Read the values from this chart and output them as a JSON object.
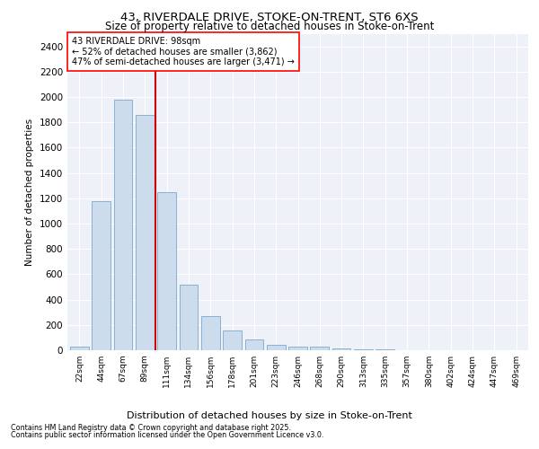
{
  "title_line1": "43, RIVERDALE DRIVE, STOKE-ON-TRENT, ST6 6XS",
  "title_line2": "Size of property relative to detached houses in Stoke-on-Trent",
  "xlabel": "Distribution of detached houses by size in Stoke-on-Trent",
  "ylabel": "Number of detached properties",
  "annotation_line1": "43 RIVERDALE DRIVE: 98sqm",
  "annotation_line2": "← 52% of detached houses are smaller (3,862)",
  "annotation_line3": "47% of semi-detached houses are larger (3,471) →",
  "bar_labels": [
    "22sqm",
    "44sqm",
    "67sqm",
    "89sqm",
    "111sqm",
    "134sqm",
    "156sqm",
    "178sqm",
    "201sqm",
    "223sqm",
    "246sqm",
    "268sqm",
    "290sqm",
    "313sqm",
    "335sqm",
    "357sqm",
    "380sqm",
    "402sqm",
    "424sqm",
    "447sqm",
    "469sqm"
  ],
  "bar_values": [
    25,
    1175,
    1980,
    1860,
    1245,
    515,
    270,
    155,
    85,
    45,
    30,
    28,
    12,
    8,
    5,
    3,
    2,
    1,
    1,
    1,
    1
  ],
  "bar_color": "#ccdcec",
  "bar_edge_color": "#7aa8cc",
  "vline_color": "#cc0000",
  "vline_x_pos": 3.48,
  "ylim_max": 2500,
  "yticks": [
    0,
    200,
    400,
    600,
    800,
    1000,
    1200,
    1400,
    1600,
    1800,
    2000,
    2200,
    2400
  ],
  "background_color": "#eef2f8",
  "grid_color": "#ffffff",
  "footnote1": "Contains HM Land Registry data © Crown copyright and database right 2025.",
  "footnote2": "Contains public sector information licensed under the Open Government Licence v3.0."
}
